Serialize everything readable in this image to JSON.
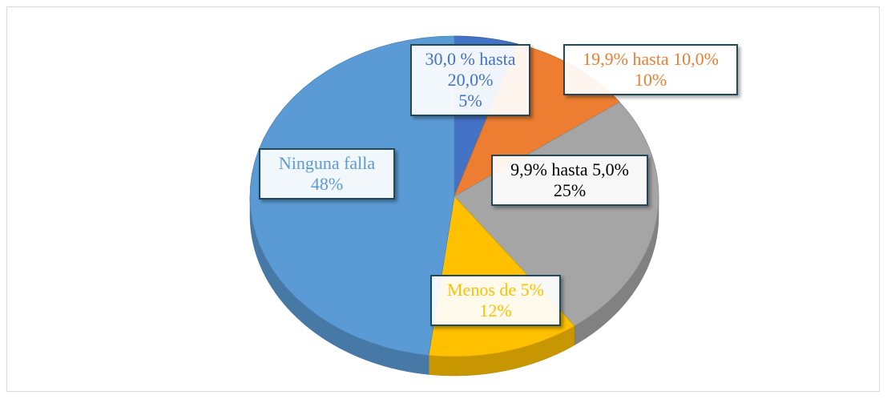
{
  "chart_data": {
    "type": "pie",
    "categories": [
      "30,0 % hasta 20,0%",
      "19,9% hasta 10,0%",
      "9,9% hasta 5,0%",
      "Menos de 5%",
      "Ninguna falla"
    ],
    "values": [
      5,
      10,
      25,
      12,
      48
    ],
    "value_labels": [
      "5%",
      "10%",
      "25%",
      "12%",
      "48%"
    ],
    "colors": [
      "#4472c4",
      "#ed7d31",
      "#a5a5a5",
      "#ffc000",
      "#5b9bd5"
    ],
    "label_colors": [
      "#4472c4",
      "#ed7d31",
      "#000000",
      "#ffc000",
      "#5b9bd5"
    ]
  }
}
